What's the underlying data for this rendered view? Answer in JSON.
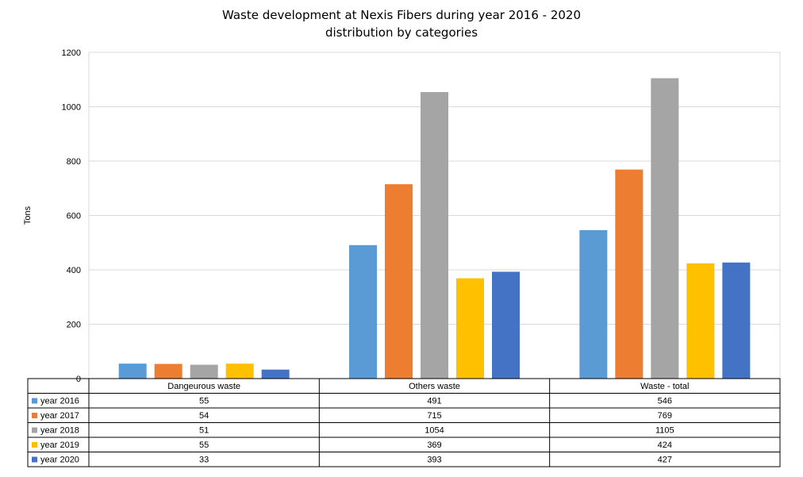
{
  "chart_data": {
    "type": "bar",
    "title": "Waste development at Nexis Fibers during year 2016 - 2020",
    "subtitle": "distribution by categories",
    "ylabel": "Tons",
    "xlabel": "",
    "ylim": [
      0,
      1200
    ],
    "yticks": [
      0,
      200,
      400,
      600,
      800,
      1000,
      1200
    ],
    "grid": true,
    "legend": "data-table",
    "categories": [
      "Dangeurous waste",
      "Others waste",
      "Waste - total"
    ],
    "series": [
      {
        "name": "year 2016",
        "color": "#5B9BD5",
        "values": [
          55,
          491,
          546
        ]
      },
      {
        "name": "year 2017",
        "color": "#ED7D31",
        "values": [
          54,
          715,
          769
        ]
      },
      {
        "name": "year 2018",
        "color": "#A5A5A5",
        "values": [
          51,
          1054,
          1105
        ]
      },
      {
        "name": "year 2019",
        "color": "#FFC000",
        "values": [
          55,
          369,
          424
        ]
      },
      {
        "name": "year 2020",
        "color": "#4472C4",
        "values": [
          33,
          393,
          427
        ]
      }
    ]
  }
}
